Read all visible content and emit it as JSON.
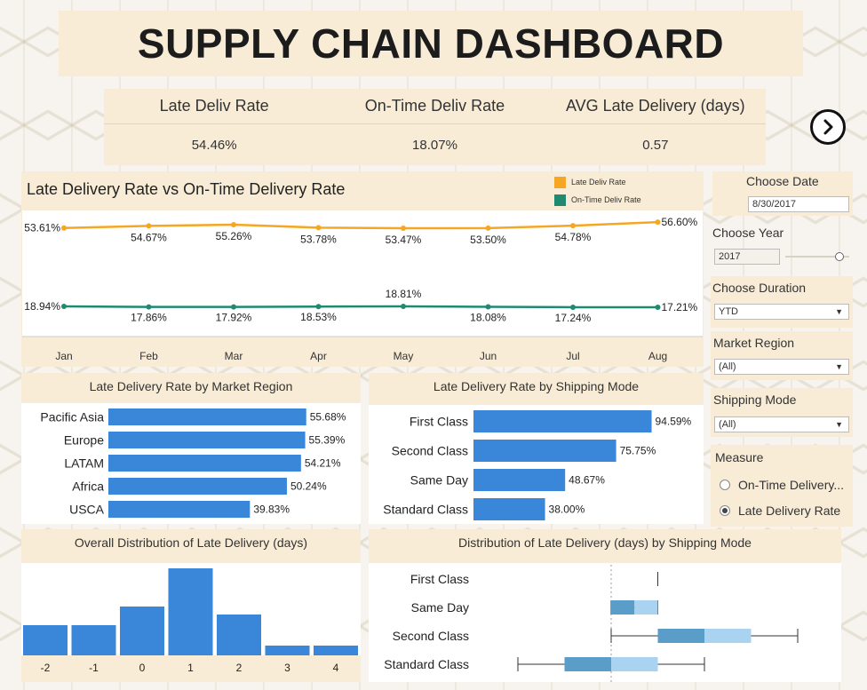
{
  "title": "SUPPLY CHAIN DASHBOARD",
  "kpis": [
    {
      "label": "Late Deliv Rate",
      "value": "54.46%"
    },
    {
      "label": "On-Time Deliv Rate",
      "value": "18.07%"
    },
    {
      "label": "AVG Late Delivery (days)",
      "value": "0.57"
    }
  ],
  "controls": {
    "choose_date_label": "Choose Date",
    "date_value": "8/30/2017",
    "choose_year_label": "Choose Year",
    "year_value": "2017",
    "year_slider_fraction": 0.85,
    "choose_duration_label": "Choose Duration",
    "duration_value": "YTD",
    "market_region_label": "Market Region",
    "market_region_value": "(All)",
    "shipping_mode_label": "Shipping Mode",
    "shipping_mode_value": "(All)",
    "measure_label": "Measure",
    "measure_options": [
      "On-Time Delivery...",
      "Late Delivery Rate"
    ],
    "measure_selected": "Late Delivery Rate"
  },
  "colors": {
    "late": "#f5a623",
    "ontime": "#1f8a70",
    "bar": "#3a86d9",
    "box_dark": "#5b9dc9",
    "box_light": "#a9d3f0"
  },
  "chart_data": [
    {
      "type": "line",
      "title": "Late Delivery Rate vs On-Time Delivery Rate",
      "categories": [
        "Jan",
        "Feb",
        "Mar",
        "Apr",
        "May",
        "Jun",
        "Jul",
        "Aug"
      ],
      "series": [
        {
          "name": "Late Deliv Rate",
          "values": [
            53.61,
            54.67,
            55.26,
            53.78,
            53.47,
            53.5,
            54.78,
            56.6
          ],
          "labels": [
            "53.61%",
            "54.67%",
            "55.26%",
            "53.78%",
            "53.47%",
            "53.50%",
            "54.78%",
            "56.60%"
          ]
        },
        {
          "name": "On-Time Deliv Rate",
          "values": [
            18.94,
            17.86,
            17.92,
            18.53,
            18.81,
            18.08,
            17.24,
            17.21
          ],
          "labels": [
            "18.94%",
            "17.86%",
            "17.92%",
            "18.53%",
            "18.81%",
            "18.08%",
            "17.24%",
            "17.21%"
          ]
        }
      ],
      "grid": false,
      "legend": "top-right"
    },
    {
      "type": "bar",
      "title": "Late Delivery Rate by Market Region",
      "categories": [
        "Pacific Asia",
        "Europe",
        "LATAM",
        "Africa",
        "USCA"
      ],
      "values": [
        55.68,
        55.39,
        54.21,
        50.24,
        39.83
      ],
      "labels": [
        "55.68%",
        "55.39%",
        "54.21%",
        "50.24%",
        "39.83%"
      ],
      "orientation": "horizontal"
    },
    {
      "type": "bar",
      "title": "Late Delivery Rate by Shipping Mode",
      "categories": [
        "First Class",
        "Second Class",
        "Same Day",
        "Standard Class"
      ],
      "values": [
        94.59,
        75.75,
        48.67,
        38.0
      ],
      "labels": [
        "94.59%",
        "75.75%",
        "48.67%",
        "38.00%"
      ],
      "orientation": "horizontal"
    },
    {
      "type": "bar",
      "title": "Overall Distribution of Late Delivery (days)",
      "categories": [
        "-2",
        "-1",
        "0",
        "1",
        "2",
        "3",
        "4"
      ],
      "values": [
        34,
        34,
        55,
        98,
        46,
        11,
        11
      ],
      "ylim": [
        0,
        100
      ]
    },
    {
      "type": "box",
      "title": "Distribution of Late Delivery (days) by Shipping Mode",
      "categories": [
        "First Class",
        "Same Day",
        "Second Class",
        "Standard Class"
      ],
      "boxes": [
        {
          "min": 1,
          "q1": 1,
          "median": 1,
          "q3": 1,
          "max": 1
        },
        {
          "min": 0,
          "q1": 0,
          "median": 0.5,
          "q3": 1,
          "max": 1
        },
        {
          "min": 0,
          "q1": 1,
          "median": 2,
          "q3": 3,
          "max": 4
        },
        {
          "min": -2,
          "q1": -1,
          "median": 0,
          "q3": 1,
          "max": 2
        }
      ],
      "xlim": [
        -2.6,
        4.6
      ]
    }
  ]
}
